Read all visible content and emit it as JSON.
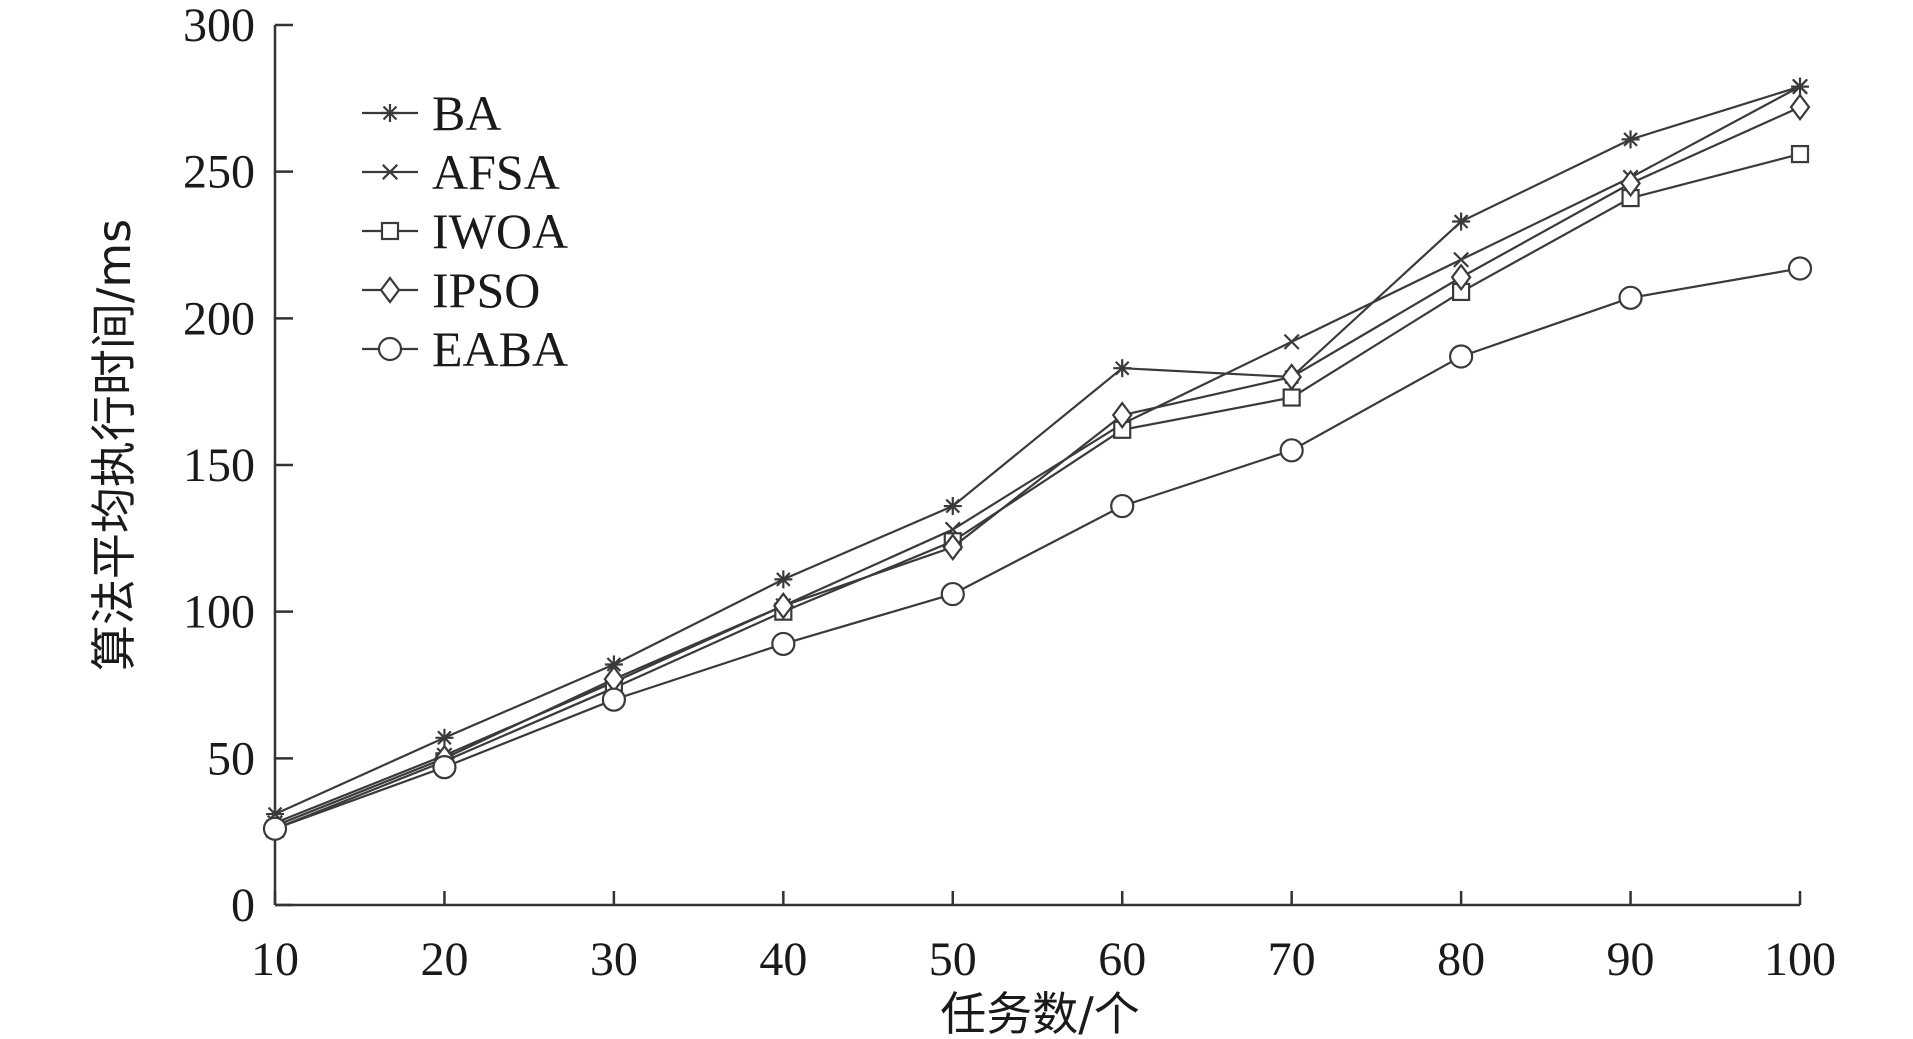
{
  "chart_data": {
    "type": "line",
    "title": "",
    "xlabel": "任务数/个",
    "ylabel": "算法平均执行时间/ms",
    "x": [
      10,
      20,
      30,
      40,
      50,
      60,
      70,
      80,
      90,
      100
    ],
    "x_ticks": [
      "10",
      "20",
      "30",
      "40",
      "50",
      "60",
      "70",
      "80",
      "90",
      "100"
    ],
    "y_ticks": [
      "0",
      "50",
      "100",
      "150",
      "200",
      "250",
      "300"
    ],
    "xlim": [
      10,
      100
    ],
    "ylim": [
      0,
      300
    ],
    "grid": false,
    "legend_position": "top-left",
    "series": [
      {
        "name": "BA",
        "marker": "asterisk",
        "values": [
          31,
          57,
          82,
          111,
          136,
          183,
          180,
          233,
          261,
          279
        ]
      },
      {
        "name": "AFSA",
        "marker": "x",
        "values": [
          28,
          51,
          76,
          102,
          128,
          164,
          192,
          220,
          248,
          279
        ]
      },
      {
        "name": "IWOA",
        "marker": "square",
        "values": [
          26,
          49,
          74,
          100,
          124,
          162,
          173,
          209,
          241,
          256
        ]
      },
      {
        "name": "IPSO",
        "marker": "diamond",
        "values": [
          27,
          50,
          77,
          102,
          122,
          167,
          180,
          214,
          246,
          272
        ]
      },
      {
        "name": "EABA",
        "marker": "circle",
        "values": [
          26,
          47,
          70,
          89,
          106,
          136,
          155,
          187,
          207,
          217
        ]
      }
    ]
  }
}
